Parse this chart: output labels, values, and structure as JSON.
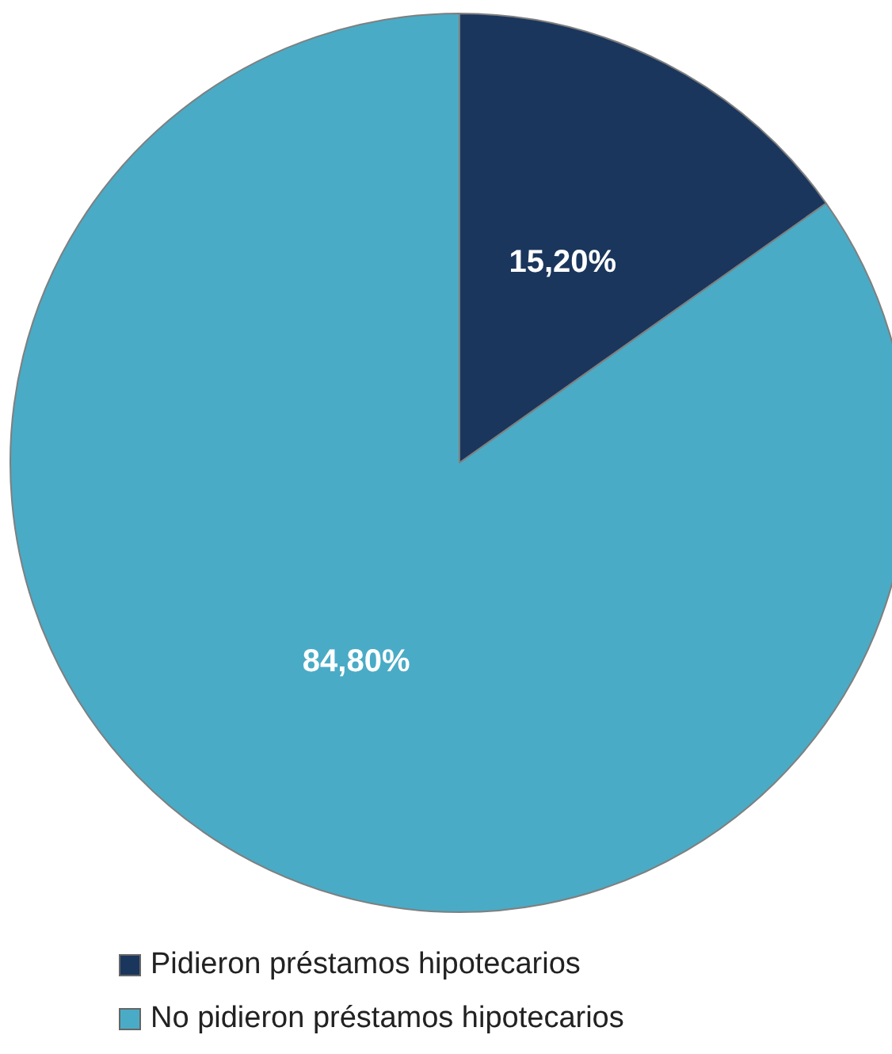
{
  "chart_data": {
    "type": "pie",
    "categories": [
      "Pidieron préstamos hipotecarios",
      "No pidieron préstamos hipotecarios"
    ],
    "values": [
      15.2,
      84.8
    ],
    "colors": [
      "#1b365d",
      "#4aabc6"
    ],
    "value_labels": [
      "15,20%",
      "84,80%"
    ],
    "legend": "bottom"
  }
}
